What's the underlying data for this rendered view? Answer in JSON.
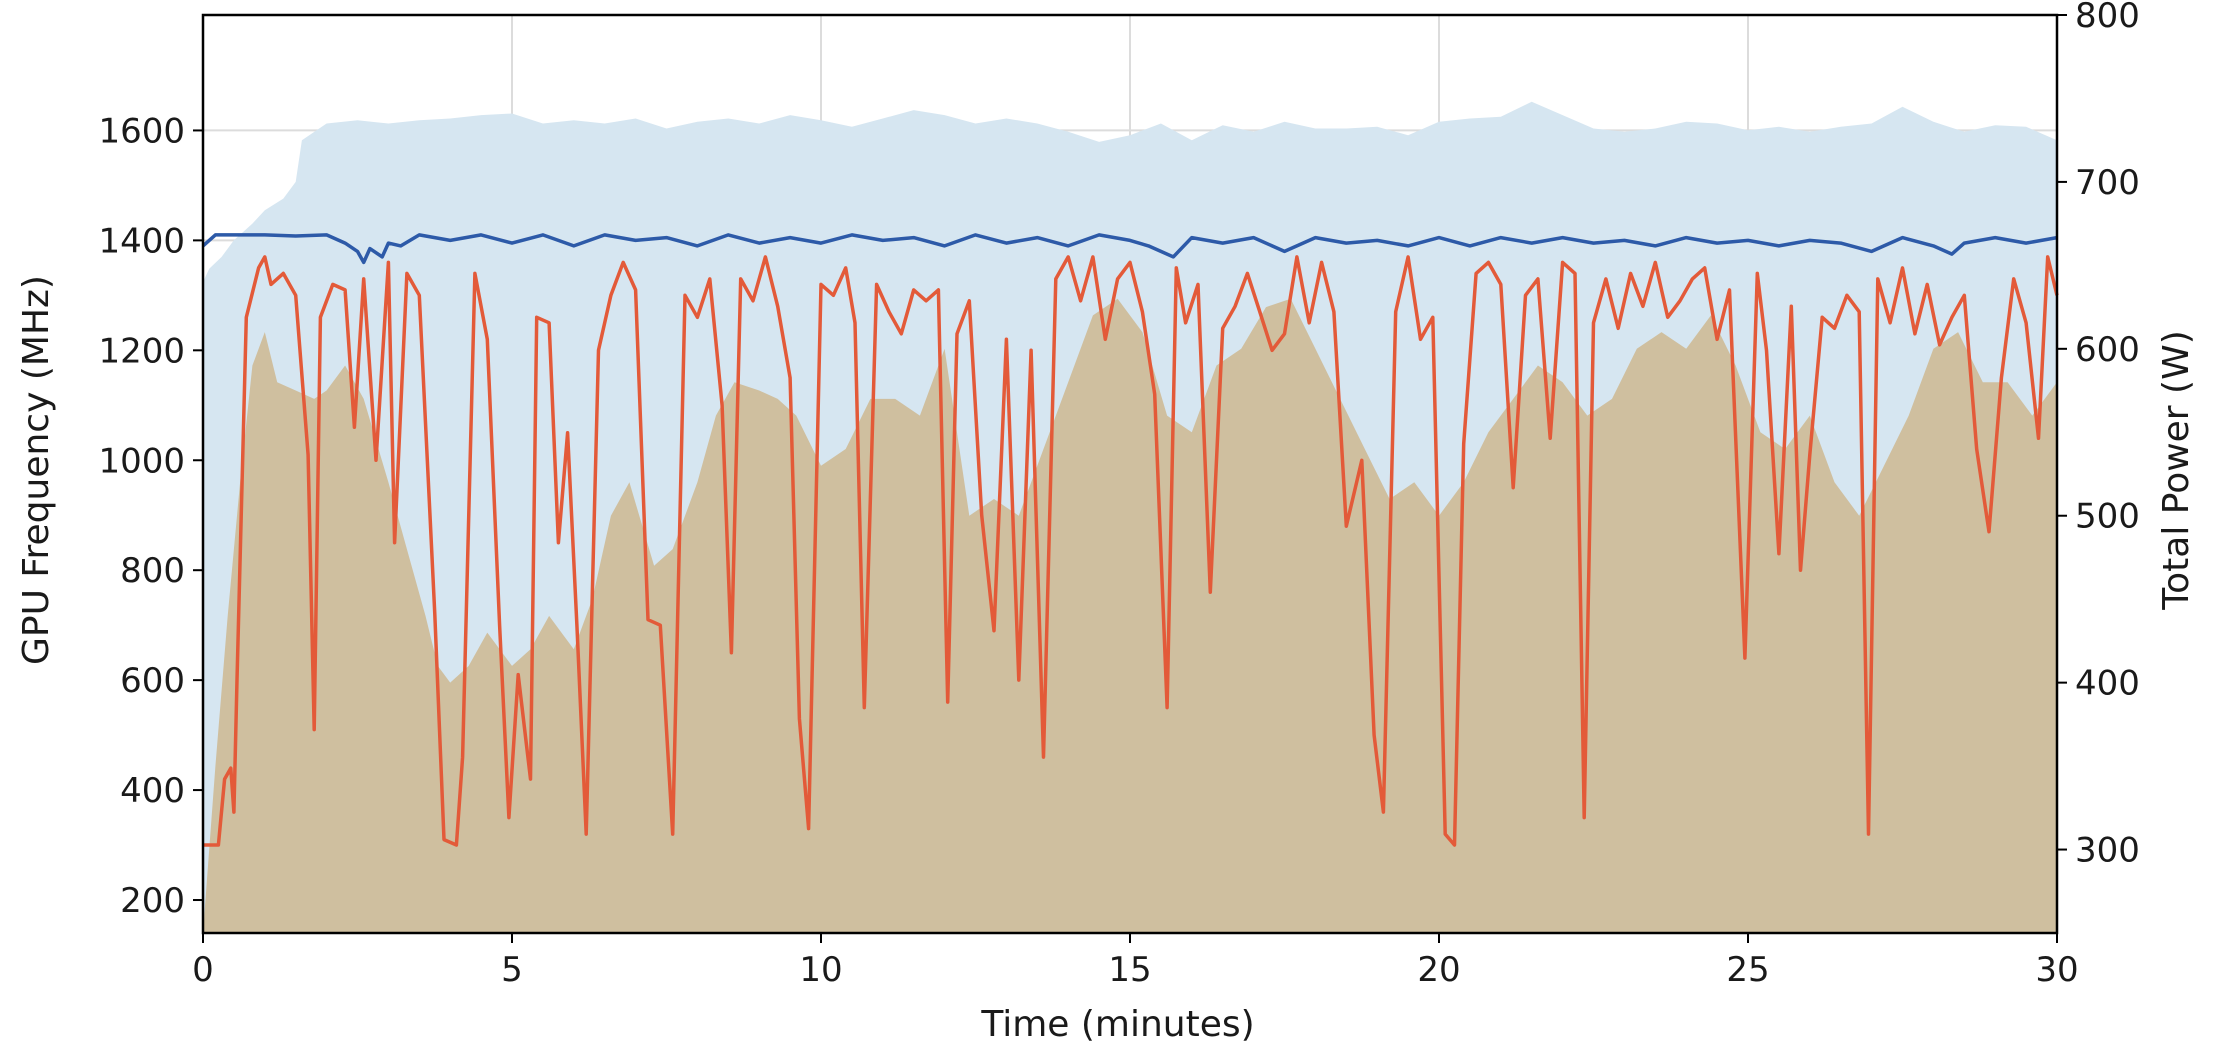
{
  "chart_data": {
    "type": "line",
    "title": "",
    "xlabel": "Time (minutes)",
    "ylabel": "GPU Frequency (MHz)",
    "y2label": "Total Power (W)",
    "xlim": [
      0,
      30
    ],
    "ylim": [
      140,
      1810
    ],
    "y2lim": [
      250,
      800
    ],
    "xticks": [
      0,
      5,
      10,
      15,
      20,
      25,
      30
    ],
    "yticks": [
      200,
      400,
      600,
      800,
      1000,
      1200,
      1400,
      1600
    ],
    "y2ticks": [
      300,
      400,
      500,
      600,
      700,
      800
    ],
    "grid": true,
    "legend": "none",
    "colors": {
      "max_power_area": "#d6e6f1",
      "power_area": "#cfbf9f",
      "freq_high": "#2d5aa8",
      "freq_low": "#e35a39",
      "axis": "#000000",
      "grid": "#dcdcdc"
    },
    "series": [
      {
        "kind": "area",
        "axis": "right",
        "color": "#d6e6f1",
        "x": [
          0,
          0.1,
          0.3,
          0.5,
          0.8,
          1.0,
          1.3,
          1.5,
          1.6,
          2.0,
          2.5,
          3.0,
          3.5,
          4.0,
          4.5,
          5.0,
          5.5,
          6.0,
          6.5,
          7.0,
          7.5,
          8.0,
          8.5,
          9.0,
          9.5,
          10.0,
          10.5,
          11.0,
          11.5,
          12.0,
          12.5,
          13.0,
          13.5,
          14.0,
          14.5,
          15.0,
          15.5,
          16.0,
          16.5,
          17.0,
          17.5,
          18.0,
          18.5,
          19.0,
          19.5,
          20.0,
          20.5,
          21.0,
          21.5,
          22.0,
          22.5,
          23.0,
          23.5,
          24.0,
          24.5,
          25.0,
          25.5,
          26.0,
          26.5,
          27.0,
          27.5,
          28.0,
          28.5,
          29.0,
          29.5,
          30.0
        ],
        "values": [
          640,
          648,
          655,
          665,
          675,
          683,
          690,
          700,
          725,
          735,
          737,
          735,
          737,
          738,
          740,
          741,
          735,
          737,
          735,
          738,
          732,
          736,
          738,
          735,
          740,
          737,
          733,
          738,
          743,
          740,
          735,
          738,
          735,
          730,
          724,
          728,
          735,
          725,
          734,
          730,
          736,
          732,
          732,
          733,
          728,
          736,
          738,
          739,
          748,
          740,
          732,
          730,
          732,
          736,
          735,
          731,
          733,
          730,
          733,
          735,
          745,
          736,
          730,
          734,
          733,
          725
        ]
      },
      {
        "kind": "area",
        "axis": "right",
        "color": "#cfbf9f",
        "x": [
          0,
          0.2,
          0.4,
          0.6,
          0.8,
          1.0,
          1.2,
          1.5,
          1.8,
          2.0,
          2.3,
          2.6,
          3.0,
          3.3,
          3.6,
          3.8,
          4.0,
          4.3,
          4.6,
          5.0,
          5.3,
          5.6,
          6.0,
          6.3,
          6.6,
          6.9,
          7.3,
          7.6,
          8.0,
          8.3,
          8.6,
          9.0,
          9.3,
          9.6,
          10.0,
          10.4,
          10.8,
          11.2,
          11.6,
          12.0,
          12.4,
          12.8,
          13.2,
          13.6,
          14.0,
          14.4,
          14.8,
          15.2,
          15.6,
          16.0,
          16.4,
          16.8,
          17.2,
          17.6,
          18.0,
          18.4,
          18.8,
          19.2,
          19.6,
          20.0,
          20.4,
          20.8,
          21.2,
          21.6,
          22.0,
          22.4,
          22.8,
          23.2,
          23.6,
          24.0,
          24.4,
          24.8,
          25.2,
          25.6,
          26.0,
          26.4,
          26.8,
          27.2,
          27.6,
          28.0,
          28.4,
          28.8,
          29.2,
          29.6,
          30.0
        ],
        "values": [
          250,
          350,
          440,
          520,
          590,
          610,
          580,
          575,
          570,
          575,
          590,
          570,
          520,
          480,
          440,
          410,
          400,
          410,
          430,
          410,
          420,
          440,
          420,
          450,
          500,
          520,
          470,
          480,
          520,
          560,
          580,
          575,
          570,
          560,
          530,
          540,
          570,
          570,
          560,
          600,
          500,
          510,
          500,
          540,
          580,
          620,
          630,
          610,
          560,
          550,
          590,
          600,
          625,
          630,
          600,
          570,
          540,
          510,
          520,
          500,
          520,
          550,
          570,
          590,
          580,
          560,
          570,
          600,
          610,
          600,
          620,
          590,
          550,
          540,
          560,
          520,
          500,
          530,
          560,
          600,
          610,
          580,
          580,
          560,
          580
        ]
      },
      {
        "name": "",
        "kind": "line",
        "axis": "left",
        "color": "#2d5aa8",
        "x": [
          0,
          0.2,
          0.5,
          1.0,
          1.5,
          2.0,
          2.3,
          2.5,
          2.6,
          2.7,
          2.9,
          3.0,
          3.2,
          3.5,
          4.0,
          4.5,
          5.0,
          5.5,
          6.0,
          6.5,
          7.0,
          7.5,
          8.0,
          8.5,
          9.0,
          9.5,
          10.0,
          10.5,
          11.0,
          11.5,
          12.0,
          12.5,
          13.0,
          13.5,
          14.0,
          14.5,
          15.0,
          15.3,
          15.5,
          15.7,
          16.0,
          16.5,
          17.0,
          17.5,
          18.0,
          18.5,
          19.0,
          19.5,
          20.0,
          20.5,
          21.0,
          21.5,
          22.0,
          22.5,
          23.0,
          23.5,
          24.0,
          24.5,
          25.0,
          25.5,
          26.0,
          26.5,
          27.0,
          27.5,
          28.0,
          28.3,
          28.5,
          29.0,
          29.5,
          30.0
        ],
        "values": [
          1390,
          1410,
          1410,
          1410,
          1408,
          1410,
          1395,
          1380,
          1360,
          1385,
          1370,
          1395,
          1390,
          1410,
          1400,
          1410,
          1395,
          1410,
          1390,
          1410,
          1400,
          1405,
          1390,
          1410,
          1395,
          1405,
          1395,
          1410,
          1400,
          1405,
          1390,
          1410,
          1395,
          1405,
          1390,
          1410,
          1400,
          1390,
          1380,
          1370,
          1405,
          1395,
          1405,
          1380,
          1405,
          1395,
          1400,
          1390,
          1405,
          1390,
          1405,
          1395,
          1405,
          1395,
          1400,
          1390,
          1405,
          1395,
          1400,
          1390,
          1400,
          1395,
          1380,
          1405,
          1390,
          1375,
          1395,
          1405,
          1395,
          1405
        ]
      },
      {
        "name": "",
        "kind": "line",
        "axis": "left",
        "color": "#e35a39",
        "x": [
          0,
          0.25,
          0.35,
          0.45,
          0.5,
          0.55,
          0.7,
          0.9,
          1.0,
          1.1,
          1.3,
          1.5,
          1.7,
          1.8,
          1.9,
          2.1,
          2.3,
          2.45,
          2.6,
          2.8,
          3.0,
          3.1,
          3.3,
          3.5,
          3.75,
          3.9,
          4.1,
          4.2,
          4.4,
          4.6,
          4.8,
          4.95,
          5.1,
          5.3,
          5.4,
          5.6,
          5.75,
          5.9,
          6.05,
          6.2,
          6.4,
          6.6,
          6.8,
          7.0,
          7.2,
          7.4,
          7.6,
          7.8,
          8.0,
          8.2,
          8.4,
          8.55,
          8.7,
          8.9,
          9.1,
          9.3,
          9.5,
          9.65,
          9.8,
          10.0,
          10.2,
          10.4,
          10.55,
          10.7,
          10.9,
          11.1,
          11.3,
          11.5,
          11.7,
          11.9,
          12.05,
          12.2,
          12.4,
          12.6,
          12.8,
          13.0,
          13.2,
          13.4,
          13.6,
          13.8,
          14.0,
          14.2,
          14.4,
          14.6,
          14.8,
          15.0,
          15.2,
          15.4,
          15.6,
          15.75,
          15.9,
          16.1,
          16.3,
          16.5,
          16.7,
          16.9,
          17.1,
          17.3,
          17.5,
          17.7,
          17.9,
          18.1,
          18.3,
          18.5,
          18.75,
          18.95,
          19.1,
          19.3,
          19.5,
          19.7,
          19.9,
          20.1,
          20.25,
          20.4,
          20.6,
          20.8,
          21.0,
          21.2,
          21.4,
          21.6,
          21.8,
          22.0,
          22.2,
          22.35,
          22.5,
          22.7,
          22.9,
          23.1,
          23.3,
          23.5,
          23.7,
          23.9,
          24.1,
          24.3,
          24.5,
          24.7,
          24.95,
          25.15,
          25.3,
          25.5,
          25.7,
          25.85,
          26.0,
          26.2,
          26.4,
          26.6,
          26.8,
          26.95,
          27.1,
          27.3,
          27.5,
          27.7,
          27.9,
          28.1,
          28.3,
          28.5,
          28.7,
          28.9,
          29.1,
          29.3,
          29.5,
          29.7,
          29.85,
          30.0
        ],
        "values": [
          300,
          300,
          420,
          440,
          360,
          600,
          1260,
          1350,
          1370,
          1320,
          1340,
          1300,
          1010,
          510,
          1260,
          1320,
          1310,
          1060,
          1330,
          1000,
          1360,
          850,
          1340,
          1300,
          720,
          310,
          300,
          460,
          1340,
          1220,
          700,
          350,
          610,
          420,
          1260,
          1250,
          850,
          1050,
          700,
          320,
          1200,
          1300,
          1360,
          1310,
          710,
          700,
          320,
          1300,
          1260,
          1330,
          1100,
          650,
          1330,
          1290,
          1370,
          1280,
          1150,
          530,
          330,
          1320,
          1300,
          1350,
          1250,
          550,
          1320,
          1270,
          1230,
          1310,
          1290,
          1310,
          560,
          1230,
          1290,
          900,
          690,
          1220,
          600,
          1200,
          460,
          1330,
          1370,
          1290,
          1370,
          1220,
          1330,
          1360,
          1270,
          1120,
          550,
          1350,
          1250,
          1320,
          760,
          1240,
          1280,
          1340,
          1270,
          1200,
          1230,
          1370,
          1250,
          1360,
          1270,
          880,
          1000,
          500,
          360,
          1270,
          1370,
          1220,
          1260,
          320,
          300,
          1030,
          1340,
          1360,
          1320,
          950,
          1300,
          1330,
          1040,
          1360,
          1340,
          350,
          1250,
          1330,
          1240,
          1340,
          1280,
          1360,
          1260,
          1290,
          1330,
          1350,
          1220,
          1310,
          640,
          1340,
          1200,
          830,
          1280,
          800,
          1010,
          1260,
          1240,
          1300,
          1270,
          320,
          1330,
          1250,
          1350,
          1230,
          1320,
          1210,
          1260,
          1300,
          1020,
          870,
          1150,
          1330,
          1250,
          1040,
          1370,
          1300
        ]
      }
    ]
  }
}
